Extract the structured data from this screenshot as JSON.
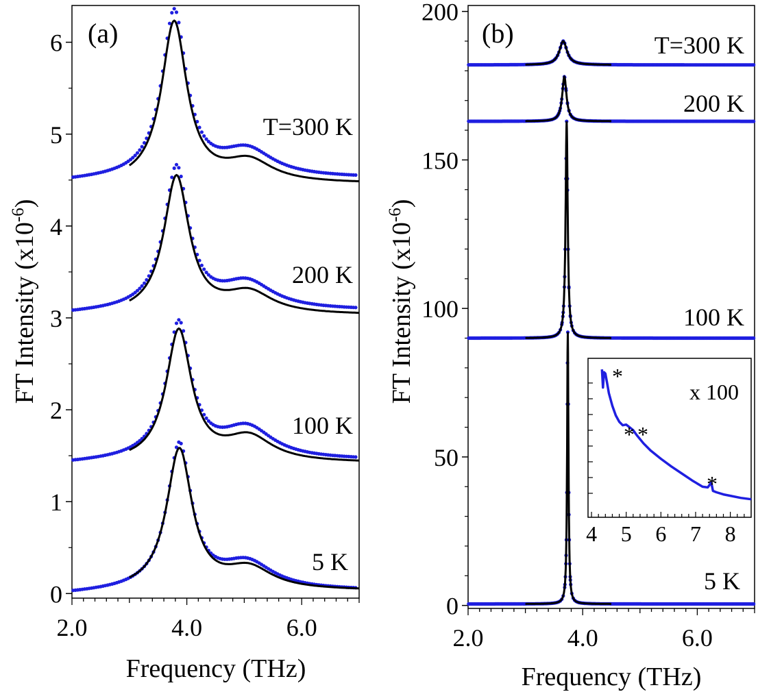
{
  "chart_data": [
    {
      "panel_label": "(a)",
      "type": "line",
      "xlabel": "Frequency (THz)",
      "ylabel": "FT Intensity (x10",
      "ylabel_exp": "-6",
      "ylabel_close": ")",
      "xlim": [
        2.0,
        7.0
      ],
      "ylim": [
        -0.05,
        6.4
      ],
      "x_tick_labels": [
        "2.0",
        "4.0",
        "6.0"
      ],
      "x_tick_values": [
        2.0,
        4.0,
        6.0
      ],
      "y_tick_labels": [
        "0",
        "1",
        "2",
        "3",
        "4",
        "5",
        "6"
      ],
      "y_tick_values": [
        0,
        1,
        2,
        3,
        4,
        5,
        6
      ],
      "series": [
        {
          "label": "T=300 K",
          "baseline": 4.52,
          "peak_x": 3.78,
          "peak_y": 6.32,
          "bump_x": 5.05,
          "bump_y": 4.82,
          "fit_baseline": 4.46,
          "fit_start_x": 3.0
        },
        {
          "label": "200 K",
          "baseline": 3.08,
          "peak_x": 3.82,
          "peak_y": 4.62,
          "bump_x": 5.05,
          "bump_y": 3.38,
          "fit_baseline": 3.03,
          "fit_start_x": 3.0
        },
        {
          "label": "100 K",
          "baseline": 1.45,
          "peak_x": 3.86,
          "peak_y": 2.92,
          "bump_x": 5.05,
          "bump_y": 1.8,
          "fit_baseline": 1.42,
          "fit_start_x": 3.0
        },
        {
          "label": "5 K",
          "baseline": 0.03,
          "peak_x": 3.87,
          "peak_y": 1.6,
          "bump_x": 5.05,
          "bump_y": 0.33,
          "fit_baseline": 0.03,
          "fit_start_x": 3.0
        }
      ]
    },
    {
      "panel_label": "(b)",
      "type": "line",
      "xlabel": "Frequency (THz)",
      "ylabel": "FT Intensity (x10",
      "ylabel_exp": "-6",
      "ylabel_close": ")",
      "xlim": [
        2.0,
        7.0
      ],
      "ylim": [
        -1,
        202
      ],
      "x_tick_labels": [
        "2.0",
        "4.0",
        "6.0"
      ],
      "x_tick_values": [
        2.0,
        4.0,
        6.0
      ],
      "y_tick_labels": [
        "0",
        "50",
        "100",
        "150",
        "200"
      ],
      "y_tick_values": [
        0,
        50,
        100,
        150,
        200
      ],
      "series": [
        {
          "label": "T=300 K",
          "baseline": 182,
          "peak_x": 3.66,
          "peak_y": 190,
          "width": 0.08
        },
        {
          "label": "200 K",
          "baseline": 163,
          "peak_x": 3.68,
          "peak_y": 178,
          "width": 0.045
        },
        {
          "label": "100 K",
          "baseline": 90,
          "peak_x": 3.72,
          "peak_y": 163,
          "width": 0.022
        },
        {
          "label": "5 K",
          "baseline": 0.5,
          "peak_x": 3.74,
          "peak_y": 92,
          "width": 0.014
        }
      ],
      "inset": {
        "label": "x 100",
        "xlim": [
          3.9,
          8.6
        ],
        "x_tick_labels": [
          "4",
          "5",
          "6",
          "7",
          "8"
        ],
        "x_tick_values": [
          4,
          5,
          6,
          7,
          8
        ],
        "markers": [
          "*",
          "**",
          "*"
        ],
        "curve_x": [
          4.3,
          4.33,
          4.36,
          4.4,
          4.45,
          4.5,
          4.6,
          4.7,
          4.8,
          4.9,
          5.0,
          5.1,
          5.2,
          5.3,
          5.5,
          5.7,
          6.0,
          6.3,
          6.6,
          6.9,
          7.2,
          7.35,
          7.45,
          7.5,
          7.6,
          7.8,
          8.0,
          8.3,
          8.6
        ],
        "curve_y": [
          10.0,
          8.7,
          9.8,
          9.7,
          9.0,
          8.3,
          7.4,
          6.7,
          6.25,
          6.0,
          6.05,
          5.85,
          5.65,
          5.3,
          4.7,
          4.2,
          3.6,
          3.05,
          2.55,
          2.05,
          1.6,
          1.55,
          1.9,
          1.3,
          1.2,
          1.05,
          0.95,
          0.8,
          0.7
        ]
      }
    }
  ]
}
